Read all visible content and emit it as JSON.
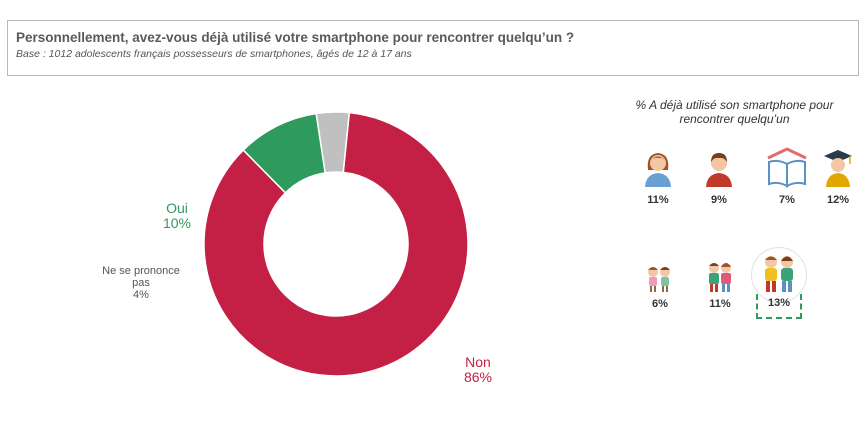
{
  "header": {
    "title": "Personnellement, avez-vous déjà utilisé votre smartphone pour rencontrer quelqu’un ?",
    "subtitle": "Base : 1012 adolescents français possesseurs de smartphones, âgés de 12 à 17 ans"
  },
  "chart_data": {
    "type": "pie",
    "donut": true,
    "slices": [
      {
        "label": "Non",
        "value": 86,
        "value_label": "86%",
        "color": "#c41f45"
      },
      {
        "label": "Oui",
        "value": 10,
        "value_label": "10%",
        "color": "#2e9a5e"
      },
      {
        "label": "Ne se prononce pas",
        "value": 4,
        "value_label": "4%",
        "color": "#c0c0c0"
      }
    ]
  },
  "breakdown": {
    "title": "% A déjà utilisé son smartphone pour rencontrer quelqu’un",
    "items": [
      {
        "icon": "girl-icon",
        "value": "11%"
      },
      {
        "icon": "boy-icon",
        "value": "9%"
      },
      {
        "icon": "school-book-icon",
        "value": "7%"
      },
      {
        "icon": "graduate-icon",
        "value": "12%"
      },
      {
        "icon": "young-children-icon",
        "value": "6%"
      },
      {
        "icon": "children-icon",
        "value": "11%"
      },
      {
        "icon": "teenagers-icon",
        "value": "13%",
        "highlighted": true
      }
    ]
  }
}
